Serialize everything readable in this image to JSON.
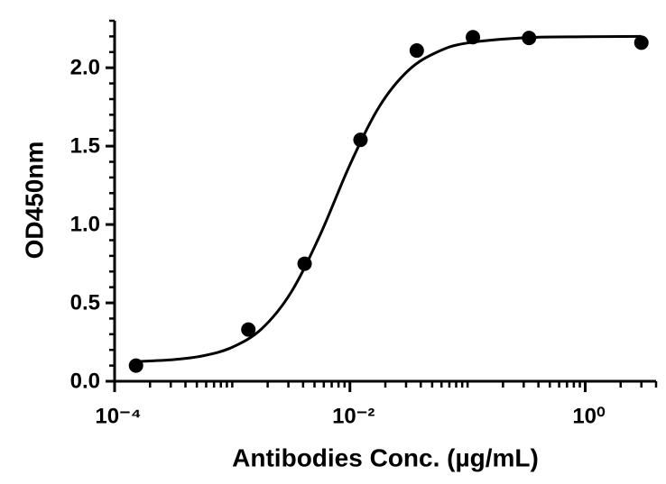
{
  "chart_data": {
    "type": "scatter",
    "x_label": "Antibodies Conc. (µg/mL)",
    "y_label": "OD450nm",
    "xscale": "log",
    "xlim": [
      0.0001,
      4
    ],
    "ylim": [
      0,
      2.3
    ],
    "xticks": [
      {
        "value": 0.0001,
        "label": "10⁻⁴"
      },
      {
        "value": 0.01,
        "label": "10⁻²"
      },
      {
        "value": 1,
        "label": "10⁰"
      }
    ],
    "xminorticks": [
      0.0002,
      0.0003,
      0.0004,
      0.0005,
      0.0006,
      0.0007,
      0.0008,
      0.0009,
      0.001,
      0.002,
      0.003,
      0.004,
      0.005,
      0.006,
      0.007,
      0.008,
      0.009,
      0.02,
      0.03,
      0.04,
      0.05,
      0.06,
      0.07,
      0.08,
      0.09,
      0.1,
      0.2,
      0.3,
      0.4,
      0.5,
      0.6,
      0.7,
      0.8,
      0.9,
      2,
      3,
      4
    ],
    "yticks": [
      {
        "value": 0,
        "label": "0.0"
      },
      0.5,
      {
        "value": 1,
        "label": "1.0"
      },
      1.5,
      {
        "value": 2,
        "label": "2.0"
      }
    ],
    "yminorticks": [
      0.1,
      0.2,
      0.3,
      0.4,
      0.6,
      0.7,
      0.8,
      0.9,
      1.1,
      1.2,
      1.3,
      1.4,
      1.6,
      1.7,
      1.8,
      1.9,
      2.1,
      2.2,
      2.3
    ],
    "series": [
      {
        "color": "#000000",
        "x": [
          0.000152,
          0.00137,
          0.00412,
          0.0123,
          0.037,
          0.111,
          0.333,
          3
        ],
        "values": [
          0.1,
          0.33,
          0.75,
          1.54,
          2.11,
          2.195,
          2.19,
          2.16
        ]
      },
      {
        "type": "line",
        "color": "#000000",
        "x": [
          0.000158,
          0.000316,
          0.000562,
          0.001,
          0.00178,
          0.00316,
          0.00562,
          0.01,
          0.0178,
          0.0316,
          0.0562,
          0.1,
          0.316,
          1,
          3
        ],
        "values": [
          0.126,
          0.138,
          0.162,
          0.217,
          0.335,
          0.567,
          0.939,
          1.381,
          1.753,
          1.985,
          2.103,
          2.158,
          2.192,
          2.198,
          2.2
        ]
      }
    ]
  }
}
